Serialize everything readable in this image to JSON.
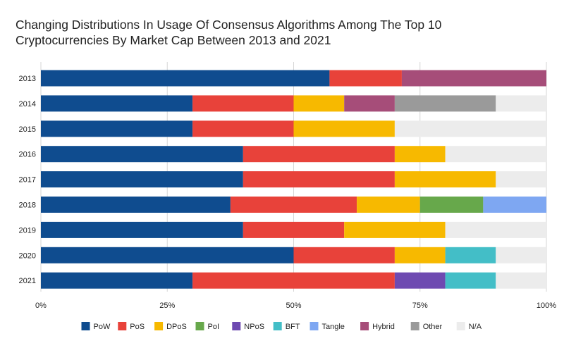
{
  "chart_data": {
    "type": "bar",
    "orientation": "horizontal",
    "stacked": "percent",
    "title_line1": "Changing Distributions In Usage Of Consensus Algorithms Among The Top 10",
    "title_line2": "Cryptocurrencies By Market Cap Between 2013 and 2021",
    "xlabel": "",
    "ylabel": "",
    "xlim": [
      0,
      100
    ],
    "x_ticks": [
      "0%",
      "25%",
      "50%",
      "75%",
      "100%"
    ],
    "grid": true,
    "legend_position": "bottom",
    "categories": [
      "2013",
      "2014",
      "2015",
      "2016",
      "2017",
      "2018",
      "2019",
      "2020",
      "2021"
    ],
    "series": [
      {
        "name": "PoW",
        "color": "#0f4c8f",
        "values": [
          57.1,
          30,
          30,
          40,
          40,
          37.5,
          40,
          50,
          30
        ]
      },
      {
        "name": "PoS",
        "color": "#e8423a",
        "values": [
          14.3,
          20,
          20,
          30,
          30,
          25,
          20,
          20,
          40
        ]
      },
      {
        "name": "DPoS",
        "color": "#f7b900",
        "values": [
          0,
          10,
          20,
          10,
          20,
          12.5,
          20,
          10,
          0
        ]
      },
      {
        "name": "PoI",
        "color": "#67a84b",
        "values": [
          0,
          0,
          0,
          0,
          0,
          12.5,
          0,
          0,
          0
        ]
      },
      {
        "name": "NPoS",
        "color": "#6e4ab1",
        "values": [
          0,
          0,
          0,
          0,
          0,
          0,
          0,
          0,
          10
        ]
      },
      {
        "name": "BFT",
        "color": "#43bec7",
        "values": [
          0,
          0,
          0,
          0,
          0,
          0,
          0,
          10,
          10
        ]
      },
      {
        "name": "Tangle",
        "color": "#7ea7f2",
        "values": [
          0,
          0,
          0,
          0,
          0,
          12.5,
          0,
          0,
          0
        ]
      },
      {
        "name": "Hybrid",
        "color": "#a64d79",
        "values": [
          28.6,
          10,
          0,
          0,
          0,
          0,
          0,
          0,
          0
        ]
      },
      {
        "name": "Other",
        "color": "#9a9a9a",
        "values": [
          0,
          20,
          0,
          0,
          0,
          0,
          0,
          0,
          0
        ]
      },
      {
        "name": "N/A",
        "color": "#ececec",
        "values": [
          0,
          10,
          30,
          20,
          10,
          0,
          20,
          10,
          10
        ]
      }
    ]
  }
}
